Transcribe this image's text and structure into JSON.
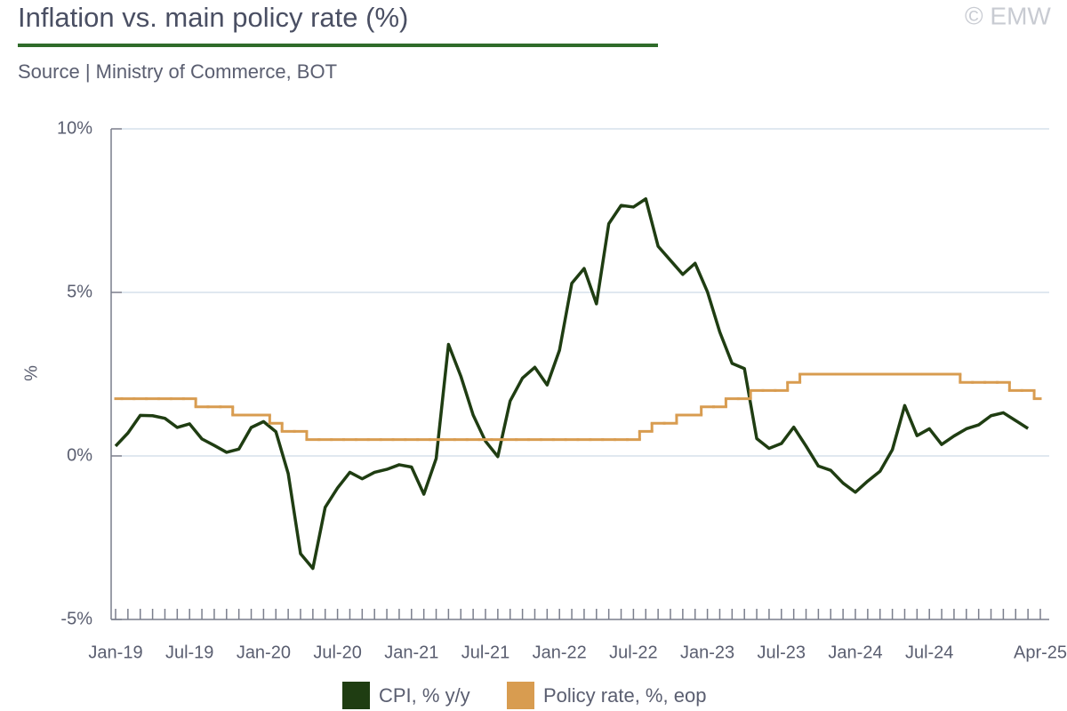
{
  "chart_data": {
    "type": "line",
    "title": "Inflation vs. main policy rate (%)",
    "subtitle": "Source | Ministry of Commerce, BOT",
    "watermark": "© EMW",
    "y_label": "%",
    "ylim": [
      -5,
      10
    ],
    "yticks": [
      {
        "value": -5,
        "label": "-5%"
      },
      {
        "value": 0,
        "label": "0%"
      },
      {
        "value": 5,
        "label": "5%"
      },
      {
        "value": 10,
        "label": "10%"
      }
    ],
    "grid": true,
    "legend": "bottom",
    "categories": [
      "Jan-19",
      null,
      null,
      null,
      null,
      null,
      "Jul-19",
      null,
      null,
      null,
      null,
      null,
      "Jan-20",
      null,
      null,
      null,
      null,
      null,
      "Jul-20",
      null,
      null,
      null,
      null,
      null,
      "Jan-21",
      null,
      null,
      null,
      null,
      null,
      "Jul-21",
      null,
      null,
      null,
      null,
      null,
      "Jan-22",
      null,
      null,
      null,
      null,
      null,
      "Jul-22",
      null,
      null,
      null,
      null,
      null,
      "Jan-23",
      null,
      null,
      null,
      null,
      null,
      "Jul-23",
      null,
      null,
      null,
      null,
      null,
      "Jan-24",
      null,
      null,
      null,
      null,
      null,
      "Jul-24",
      null,
      null,
      null,
      null,
      null,
      null,
      null,
      null,
      "Apr-25"
    ],
    "series": [
      {
        "name": "CPI, % y/y",
        "color": "#1f3d12",
        "step": false,
        "values": [
          0.3,
          0.7,
          1.24,
          1.23,
          1.15,
          0.87,
          0.98,
          0.52,
          0.32,
          0.11,
          0.21,
          0.87,
          1.05,
          0.74,
          -0.54,
          -2.99,
          -3.44,
          -1.57,
          -0.98,
          -0.5,
          -0.7,
          -0.5,
          -0.41,
          -0.27,
          -0.34,
          -1.17,
          -0.08,
          3.41,
          2.44,
          1.25,
          0.45,
          -0.02,
          1.68,
          2.38,
          2.71,
          2.17,
          3.23,
          5.28,
          5.73,
          4.65,
          7.1,
          7.66,
          7.61,
          7.86,
          6.41,
          5.98,
          5.55,
          5.89,
          5.02,
          3.79,
          2.83,
          2.67,
          0.53,
          0.23,
          0.38,
          0.88,
          0.3,
          -0.31,
          -0.44,
          -0.83,
          -1.11,
          -0.77,
          -0.47,
          0.19,
          1.54,
          0.62,
          0.83,
          0.35,
          0.61,
          0.83,
          0.95,
          1.23,
          1.32,
          1.08,
          0.84,
          null
        ]
      },
      {
        "name": "Policy rate, %, eop",
        "color": "#d89c50",
        "step": true,
        "values": [
          1.75,
          1.75,
          1.75,
          1.75,
          1.75,
          1.75,
          1.75,
          1.5,
          1.5,
          1.5,
          1.25,
          1.25,
          1.25,
          1.0,
          0.75,
          0.75,
          0.5,
          0.5,
          0.5,
          0.5,
          0.5,
          0.5,
          0.5,
          0.5,
          0.5,
          0.5,
          0.5,
          0.5,
          0.5,
          0.5,
          0.5,
          0.5,
          0.5,
          0.5,
          0.5,
          0.5,
          0.5,
          0.5,
          0.5,
          0.5,
          0.5,
          0.5,
          0.5,
          0.75,
          1.0,
          1.0,
          1.25,
          1.25,
          1.5,
          1.5,
          1.75,
          1.75,
          2.0,
          2.0,
          2.0,
          2.25,
          2.5,
          2.5,
          2.5,
          2.5,
          2.5,
          2.5,
          2.5,
          2.5,
          2.5,
          2.5,
          2.5,
          2.5,
          2.5,
          2.25,
          2.25,
          2.25,
          2.25,
          2.0,
          2.0,
          1.75
        ]
      }
    ]
  }
}
